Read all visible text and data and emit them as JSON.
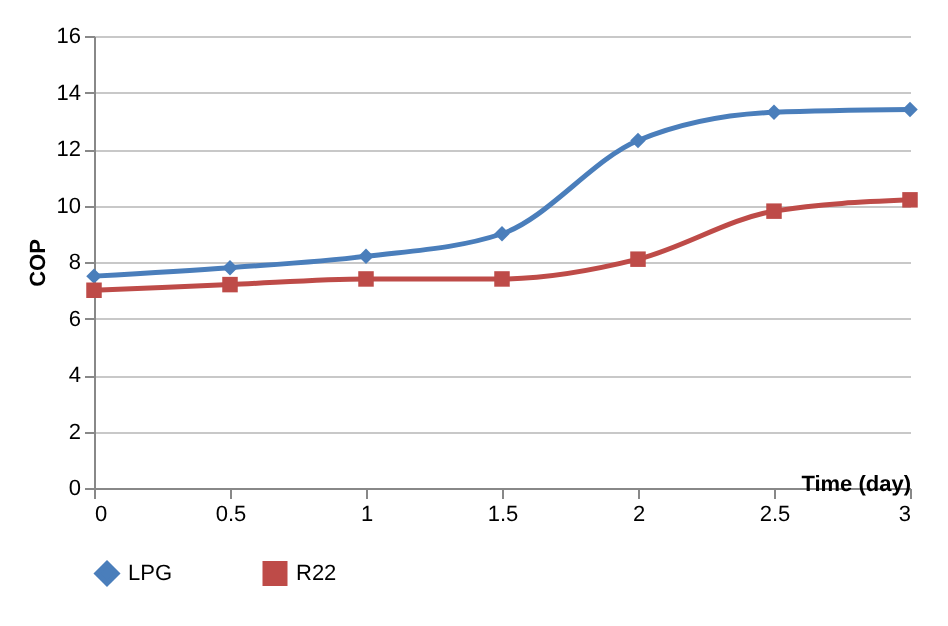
{
  "chart_data": {
    "type": "line",
    "xlabel": "Time (day)",
    "ylabel": "COP",
    "x": [
      0,
      0.5,
      1,
      1.5,
      2,
      2.5,
      3
    ],
    "series": [
      {
        "name": "LPG",
        "color": "#4a7ebb",
        "marker": "diamond",
        "values": [
          7.5,
          7.8,
          8.2,
          9.0,
          12.3,
          13.3,
          13.4
        ]
      },
      {
        "name": "R22",
        "color": "#be4b48",
        "marker": "square",
        "values": [
          7.0,
          7.2,
          7.4,
          7.4,
          8.1,
          9.8,
          10.2
        ]
      }
    ],
    "xlim": [
      0,
      3
    ],
    "xticks": [
      0,
      0.5,
      1,
      1.5,
      2,
      2.5,
      3
    ],
    "ylim": [
      0,
      16
    ],
    "yticks": [
      0,
      2,
      4,
      6,
      8,
      10,
      12,
      14,
      16
    ],
    "grid": "y",
    "legend": "bottom",
    "line_style": "solid"
  }
}
